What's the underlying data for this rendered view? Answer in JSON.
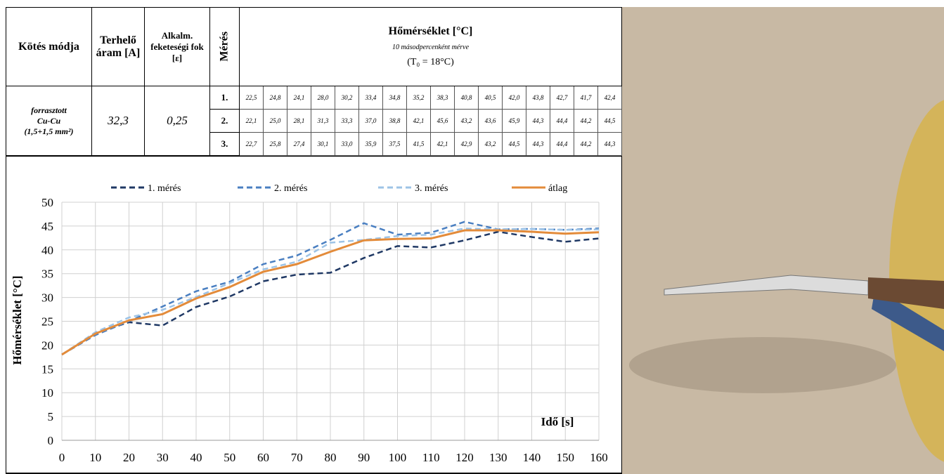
{
  "table": {
    "headers": [
      "Kötés módja",
      "Terhelő áram [A]",
      "Alkalm. feketeségi fok [ε]",
      "Mérés",
      "Hőmérséklet [°C]"
    ],
    "subtitle": "10 másodpercenként mérve",
    "note": "(T₀ = 18°C)",
    "joint": [
      "forrasztott",
      "Cu-Cu",
      "(1,5+1,5 mm²)"
    ],
    "current": "32,3",
    "emissivity": "0,25",
    "rows": [
      {
        "label": "1.",
        "values": [
          "22,5",
          "24,8",
          "24,1",
          "28,0",
          "30,2",
          "33,4",
          "34,8",
          "35,2",
          "38,3",
          "40,8",
          "40,5",
          "42,0",
          "43,8",
          "42,7",
          "41,7",
          "42,4"
        ]
      },
      {
        "label": "2.",
        "values": [
          "22,1",
          "25,0",
          "28,1",
          "31,3",
          "33,3",
          "37,0",
          "38,8",
          "42,1",
          "45,6",
          "43,2",
          "43,6",
          "45,9",
          "44,3",
          "44,4",
          "44,2",
          "44,5"
        ]
      },
      {
        "label": "3.",
        "values": [
          "22,7",
          "25,8",
          "27,4",
          "30,1",
          "33,0",
          "35,9",
          "37,5",
          "41,5",
          "42,1",
          "42,9",
          "43,2",
          "44,5",
          "44,3",
          "44,4",
          "44,2",
          "44,3"
        ]
      }
    ]
  },
  "chart_data": {
    "type": "line",
    "x_label": "Idő [s]",
    "y_label": "Hőmérséklet [°C]",
    "x": [
      0,
      10,
      20,
      30,
      40,
      50,
      60,
      70,
      80,
      90,
      100,
      110,
      120,
      130,
      140,
      150,
      160
    ],
    "series": [
      {
        "name": "1. mérés",
        "color": "#1f3864",
        "dash": "8 5",
        "values": [
          18,
          22.5,
          24.8,
          24.1,
          28.0,
          30.2,
          33.4,
          34.8,
          35.2,
          38.3,
          40.8,
          40.5,
          42.0,
          43.8,
          42.7,
          41.7,
          42.4
        ]
      },
      {
        "name": "2. mérés",
        "color": "#4a7fc1",
        "dash": "8 5",
        "values": [
          18,
          22.1,
          25.0,
          28.1,
          31.3,
          33.3,
          37.0,
          38.8,
          42.1,
          45.6,
          43.2,
          43.6,
          45.9,
          44.3,
          44.4,
          44.2,
          44.5
        ]
      },
      {
        "name": "3. mérés",
        "color": "#9dc3e6",
        "dash": "8 5",
        "values": [
          18,
          22.7,
          25.8,
          27.4,
          30.1,
          33.0,
          35.9,
          37.5,
          41.5,
          42.1,
          42.9,
          43.2,
          44.5,
          44.3,
          44.4,
          44.2,
          44.3
        ]
      },
      {
        "name": "átlag",
        "color": "#e38b3a",
        "dash": "none",
        "values": [
          18,
          22.4,
          25.2,
          26.5,
          29.8,
          32.2,
          35.4,
          37.0,
          39.6,
          42.0,
          42.3,
          42.4,
          44.1,
          44.1,
          43.8,
          43.4,
          43.7
        ]
      }
    ],
    "xlim": [
      0,
      160
    ],
    "xticks": [
      0,
      10,
      20,
      30,
      40,
      50,
      60,
      70,
      80,
      90,
      100,
      110,
      120,
      130,
      140,
      150,
      160
    ],
    "ylim": [
      0,
      50
    ],
    "yticks": [
      0,
      5,
      10,
      15,
      20,
      25,
      30,
      35,
      40,
      45,
      50
    ],
    "grid": true
  }
}
